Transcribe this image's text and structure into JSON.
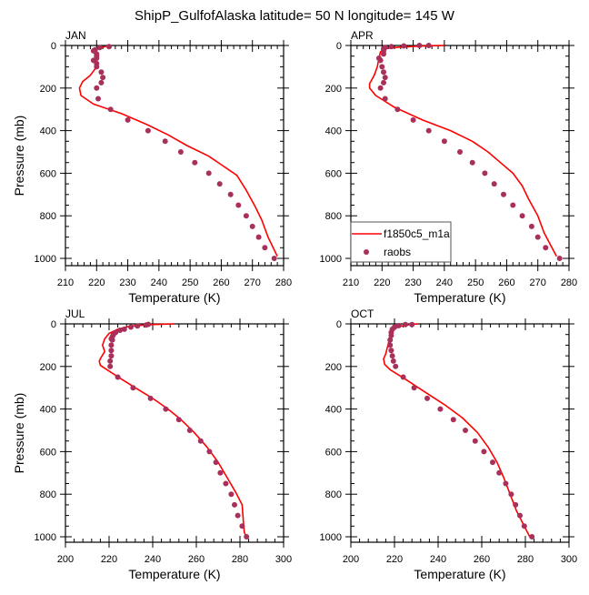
{
  "title": "ShipP_GulfofAlaska  latitude= 50 N longitude= 145 W",
  "chart_data": [
    {
      "type": "line",
      "panel_label": "JAN",
      "xlabel": "Temperature (K)",
      "ylabel": "Pressure (mb)",
      "xlim": [
        210,
        280
      ],
      "ylim": [
        1000,
        0
      ],
      "xticks": [
        210,
        220,
        230,
        240,
        250,
        260,
        270,
        280
      ],
      "yticks": [
        0,
        200,
        400,
        600,
        800,
        1000
      ],
      "series": [
        {
          "name": "f1850c5_m1a",
          "kind": "line",
          "color": "#ff0000",
          "points": [
            [
              223,
              5
            ],
            [
              221,
              10
            ],
            [
              220,
              20
            ],
            [
              219.5,
              40
            ],
            [
              219.5,
              70
            ],
            [
              219.5,
              110
            ],
            [
              218,
              140
            ],
            [
              215.5,
              170
            ],
            [
              214.5,
              200
            ],
            [
              215,
              235
            ],
            [
              219,
              275
            ],
            [
              228,
              320
            ],
            [
              236,
              370
            ],
            [
              243,
              420
            ],
            [
              249,
              470
            ],
            [
              256,
              520
            ],
            [
              260,
              560
            ],
            [
              265,
              610
            ],
            [
              268,
              680
            ],
            [
              271,
              760
            ],
            [
              273,
              820
            ],
            [
              275,
              900
            ],
            [
              278,
              990
            ]
          ]
        },
        {
          "name": "raobs",
          "kind": "scatter",
          "color": "#a8305a",
          "points": [
            [
              224,
              5
            ],
            [
              221,
              10
            ],
            [
              219.5,
              20
            ],
            [
              219,
              25
            ],
            [
              220,
              40
            ],
            [
              220,
              50
            ],
            [
              220,
              60
            ],
            [
              219,
              70
            ],
            [
              220,
              85
            ],
            [
              220,
              100
            ],
            [
              221.5,
              125
            ],
            [
              222,
              150
            ],
            [
              221.5,
              175
            ],
            [
              220,
              200
            ],
            [
              220.5,
              250
            ],
            [
              224.5,
              300
            ],
            [
              230,
              350
            ],
            [
              236.5,
              400
            ],
            [
              242,
              450
            ],
            [
              247,
              500
            ],
            [
              251.5,
              550
            ],
            [
              256,
              600
            ],
            [
              259.5,
              650
            ],
            [
              263,
              700
            ],
            [
              265.5,
              750
            ],
            [
              268,
              800
            ],
            [
              270,
              850
            ],
            [
              272,
              900
            ],
            [
              274,
              950
            ],
            [
              277,
              1000
            ]
          ]
        }
      ]
    },
    {
      "type": "line",
      "panel_label": "APR",
      "xlabel": "Temperature (K)",
      "ylabel": "",
      "xlim": [
        210,
        280
      ],
      "ylim": [
        1000,
        0
      ],
      "xticks": [
        210,
        220,
        230,
        240,
        250,
        260,
        270,
        280
      ],
      "yticks": [
        0,
        200,
        400,
        600,
        800,
        1000
      ],
      "legend": {
        "placement": "bottom-left",
        "entries": [
          {
            "label": "f1850c5_m1a",
            "kind": "line"
          },
          {
            "label": "raobs",
            "kind": "marker"
          }
        ]
      },
      "series": [
        {
          "name": "f1850c5_m1a",
          "kind": "line",
          "color": "#ff0000",
          "points": [
            [
              240,
              0
            ],
            [
              232,
              3
            ],
            [
              225,
              8
            ],
            [
              221,
              15
            ],
            [
              219.5,
              30
            ],
            [
              219,
              60
            ],
            [
              218.5,
              100
            ],
            [
              217.5,
              140
            ],
            [
              216,
              180
            ],
            [
              216,
              200
            ],
            [
              218,
              235
            ],
            [
              224,
              290
            ],
            [
              233,
              350
            ],
            [
              242,
              400
            ],
            [
              249,
              450
            ],
            [
              254,
              500
            ],
            [
              258,
              550
            ],
            [
              262,
              600
            ],
            [
              265,
              660
            ],
            [
              267,
              720
            ],
            [
              270,
              800
            ],
            [
              272,
              880
            ],
            [
              276,
              990
            ]
          ]
        },
        {
          "name": "raobs",
          "kind": "scatter",
          "color": "#a8305a",
          "points": [
            [
              235,
              0
            ],
            [
              232,
              0
            ],
            [
              227,
              2
            ],
            [
              223,
              5
            ],
            [
              221,
              10
            ],
            [
              220.5,
              15
            ],
            [
              220.5,
              25
            ],
            [
              220.5,
              40
            ],
            [
              219,
              60
            ],
            [
              219.5,
              70
            ],
            [
              220,
              100
            ],
            [
              220.5,
              125
            ],
            [
              221,
              150
            ],
            [
              220.5,
              175
            ],
            [
              219.5,
              200
            ],
            [
              221,
              250
            ],
            [
              225,
              300
            ],
            [
              230,
              350
            ],
            [
              235,
              400
            ],
            [
              240,
              450
            ],
            [
              245,
              500
            ],
            [
              249,
              550
            ],
            [
              253,
              600
            ],
            [
              256,
              650
            ],
            [
              259,
              700
            ],
            [
              262,
              750
            ],
            [
              265,
              800
            ],
            [
              268,
              850
            ],
            [
              270,
              900
            ],
            [
              272.5,
              950
            ],
            [
              277,
              1000
            ]
          ]
        }
      ]
    },
    {
      "type": "line",
      "panel_label": "JUL",
      "xlabel": "Temperature (K)",
      "ylabel": "Pressure (mb)",
      "xlim": [
        200,
        300
      ],
      "ylim": [
        1000,
        0
      ],
      "xticks": [
        200,
        220,
        240,
        260,
        280,
        300
      ],
      "yticks": [
        0,
        200,
        400,
        600,
        800,
        1000
      ],
      "series": [
        {
          "name": "f1850c5_m1a",
          "kind": "line",
          "color": "#ff0000",
          "points": [
            [
              250,
              0
            ],
            [
              240,
              3
            ],
            [
              230,
              10
            ],
            [
              224,
              25
            ],
            [
              220,
              45
            ],
            [
              218,
              70
            ],
            [
              217,
              100
            ],
            [
              218,
              130
            ],
            [
              216.5,
              155
            ],
            [
              215.5,
              175
            ],
            [
              216,
              195
            ],
            [
              219,
              215
            ],
            [
              225,
              255
            ],
            [
              232,
              300
            ],
            [
              240,
              350
            ],
            [
              247,
              400
            ],
            [
              253,
              450
            ],
            [
              259,
              510
            ],
            [
              265,
              580
            ],
            [
              270,
              650
            ],
            [
              274,
              720
            ],
            [
              278,
              790
            ],
            [
              281,
              850
            ],
            [
              281.5,
              920
            ],
            [
              282,
              980
            ],
            [
              283,
              1000
            ]
          ]
        },
        {
          "name": "raobs",
          "kind": "scatter",
          "color": "#a8305a",
          "points": [
            [
              238,
              2
            ],
            [
              237,
              5
            ],
            [
              233,
              10
            ],
            [
              230,
              15
            ],
            [
              227,
              25
            ],
            [
              225,
              30
            ],
            [
              223,
              40
            ],
            [
              222,
              50
            ],
            [
              221.5,
              60
            ],
            [
              221,
              70
            ],
            [
              221.5,
              75
            ],
            [
              221,
              100
            ],
            [
              221,
              125
            ],
            [
              221,
              150
            ],
            [
              220.5,
              175
            ],
            [
              220.5,
              200
            ],
            [
              224,
              250
            ],
            [
              231,
              300
            ],
            [
              239,
              350
            ],
            [
              246,
              400
            ],
            [
              252,
              450
            ],
            [
              257,
              500
            ],
            [
              262,
              550
            ],
            [
              266,
              600
            ],
            [
              269,
              650
            ],
            [
              271,
              700
            ],
            [
              273.5,
              750
            ],
            [
              276,
              800
            ],
            [
              277.5,
              850
            ],
            [
              279,
              900
            ],
            [
              281,
              950
            ],
            [
              283,
              1000
            ]
          ]
        }
      ]
    },
    {
      "type": "line",
      "panel_label": "OCT",
      "xlabel": "Temperature (K)",
      "ylabel": "",
      "xlim": [
        200,
        300
      ],
      "ylim": [
        1000,
        0
      ],
      "xticks": [
        200,
        220,
        240,
        260,
        280,
        300
      ],
      "yticks": [
        0,
        200,
        400,
        600,
        800,
        1000
      ],
      "series": [
        {
          "name": "f1850c5_m1a",
          "kind": "line",
          "color": "#ff0000",
          "points": [
            [
              231,
              0
            ],
            [
              227,
              3
            ],
            [
              224,
              8
            ],
            [
              221,
              18
            ],
            [
              219,
              35
            ],
            [
              218,
              60
            ],
            [
              217,
              100
            ],
            [
              216,
              140
            ],
            [
              215,
              165
            ],
            [
              215.5,
              190
            ],
            [
              218,
              215
            ],
            [
              225,
              260
            ],
            [
              234,
              320
            ],
            [
              243,
              380
            ],
            [
              251,
              440
            ],
            [
              258,
              510
            ],
            [
              263,
              580
            ],
            [
              267,
              650
            ],
            [
              270,
              720
            ],
            [
              273,
              800
            ],
            [
              276,
              880
            ],
            [
              282,
              1000
            ]
          ]
        },
        {
          "name": "raobs",
          "kind": "scatter",
          "color": "#a8305a",
          "points": [
            [
              228,
              3
            ],
            [
              225,
              3
            ],
            [
              222,
              8
            ],
            [
              220,
              15
            ],
            [
              219,
              25
            ],
            [
              218.5,
              40
            ],
            [
              218.5,
              55
            ],
            [
              218,
              75
            ],
            [
              218,
              100
            ],
            [
              218.5,
              125
            ],
            [
              219,
              150
            ],
            [
              219.5,
              175
            ],
            [
              220.5,
              200
            ],
            [
              224,
              250
            ],
            [
              229,
              300
            ],
            [
              235,
              350
            ],
            [
              241,
              400
            ],
            [
              247,
              450
            ],
            [
              252.5,
              500
            ],
            [
              257,
              550
            ],
            [
              261,
              600
            ],
            [
              265,
              650
            ],
            [
              268,
              700
            ],
            [
              271,
              750
            ],
            [
              273.5,
              800
            ],
            [
              275.5,
              850
            ],
            [
              277.5,
              900
            ],
            [
              279.5,
              950
            ],
            [
              283,
              1000
            ]
          ]
        }
      ]
    }
  ]
}
